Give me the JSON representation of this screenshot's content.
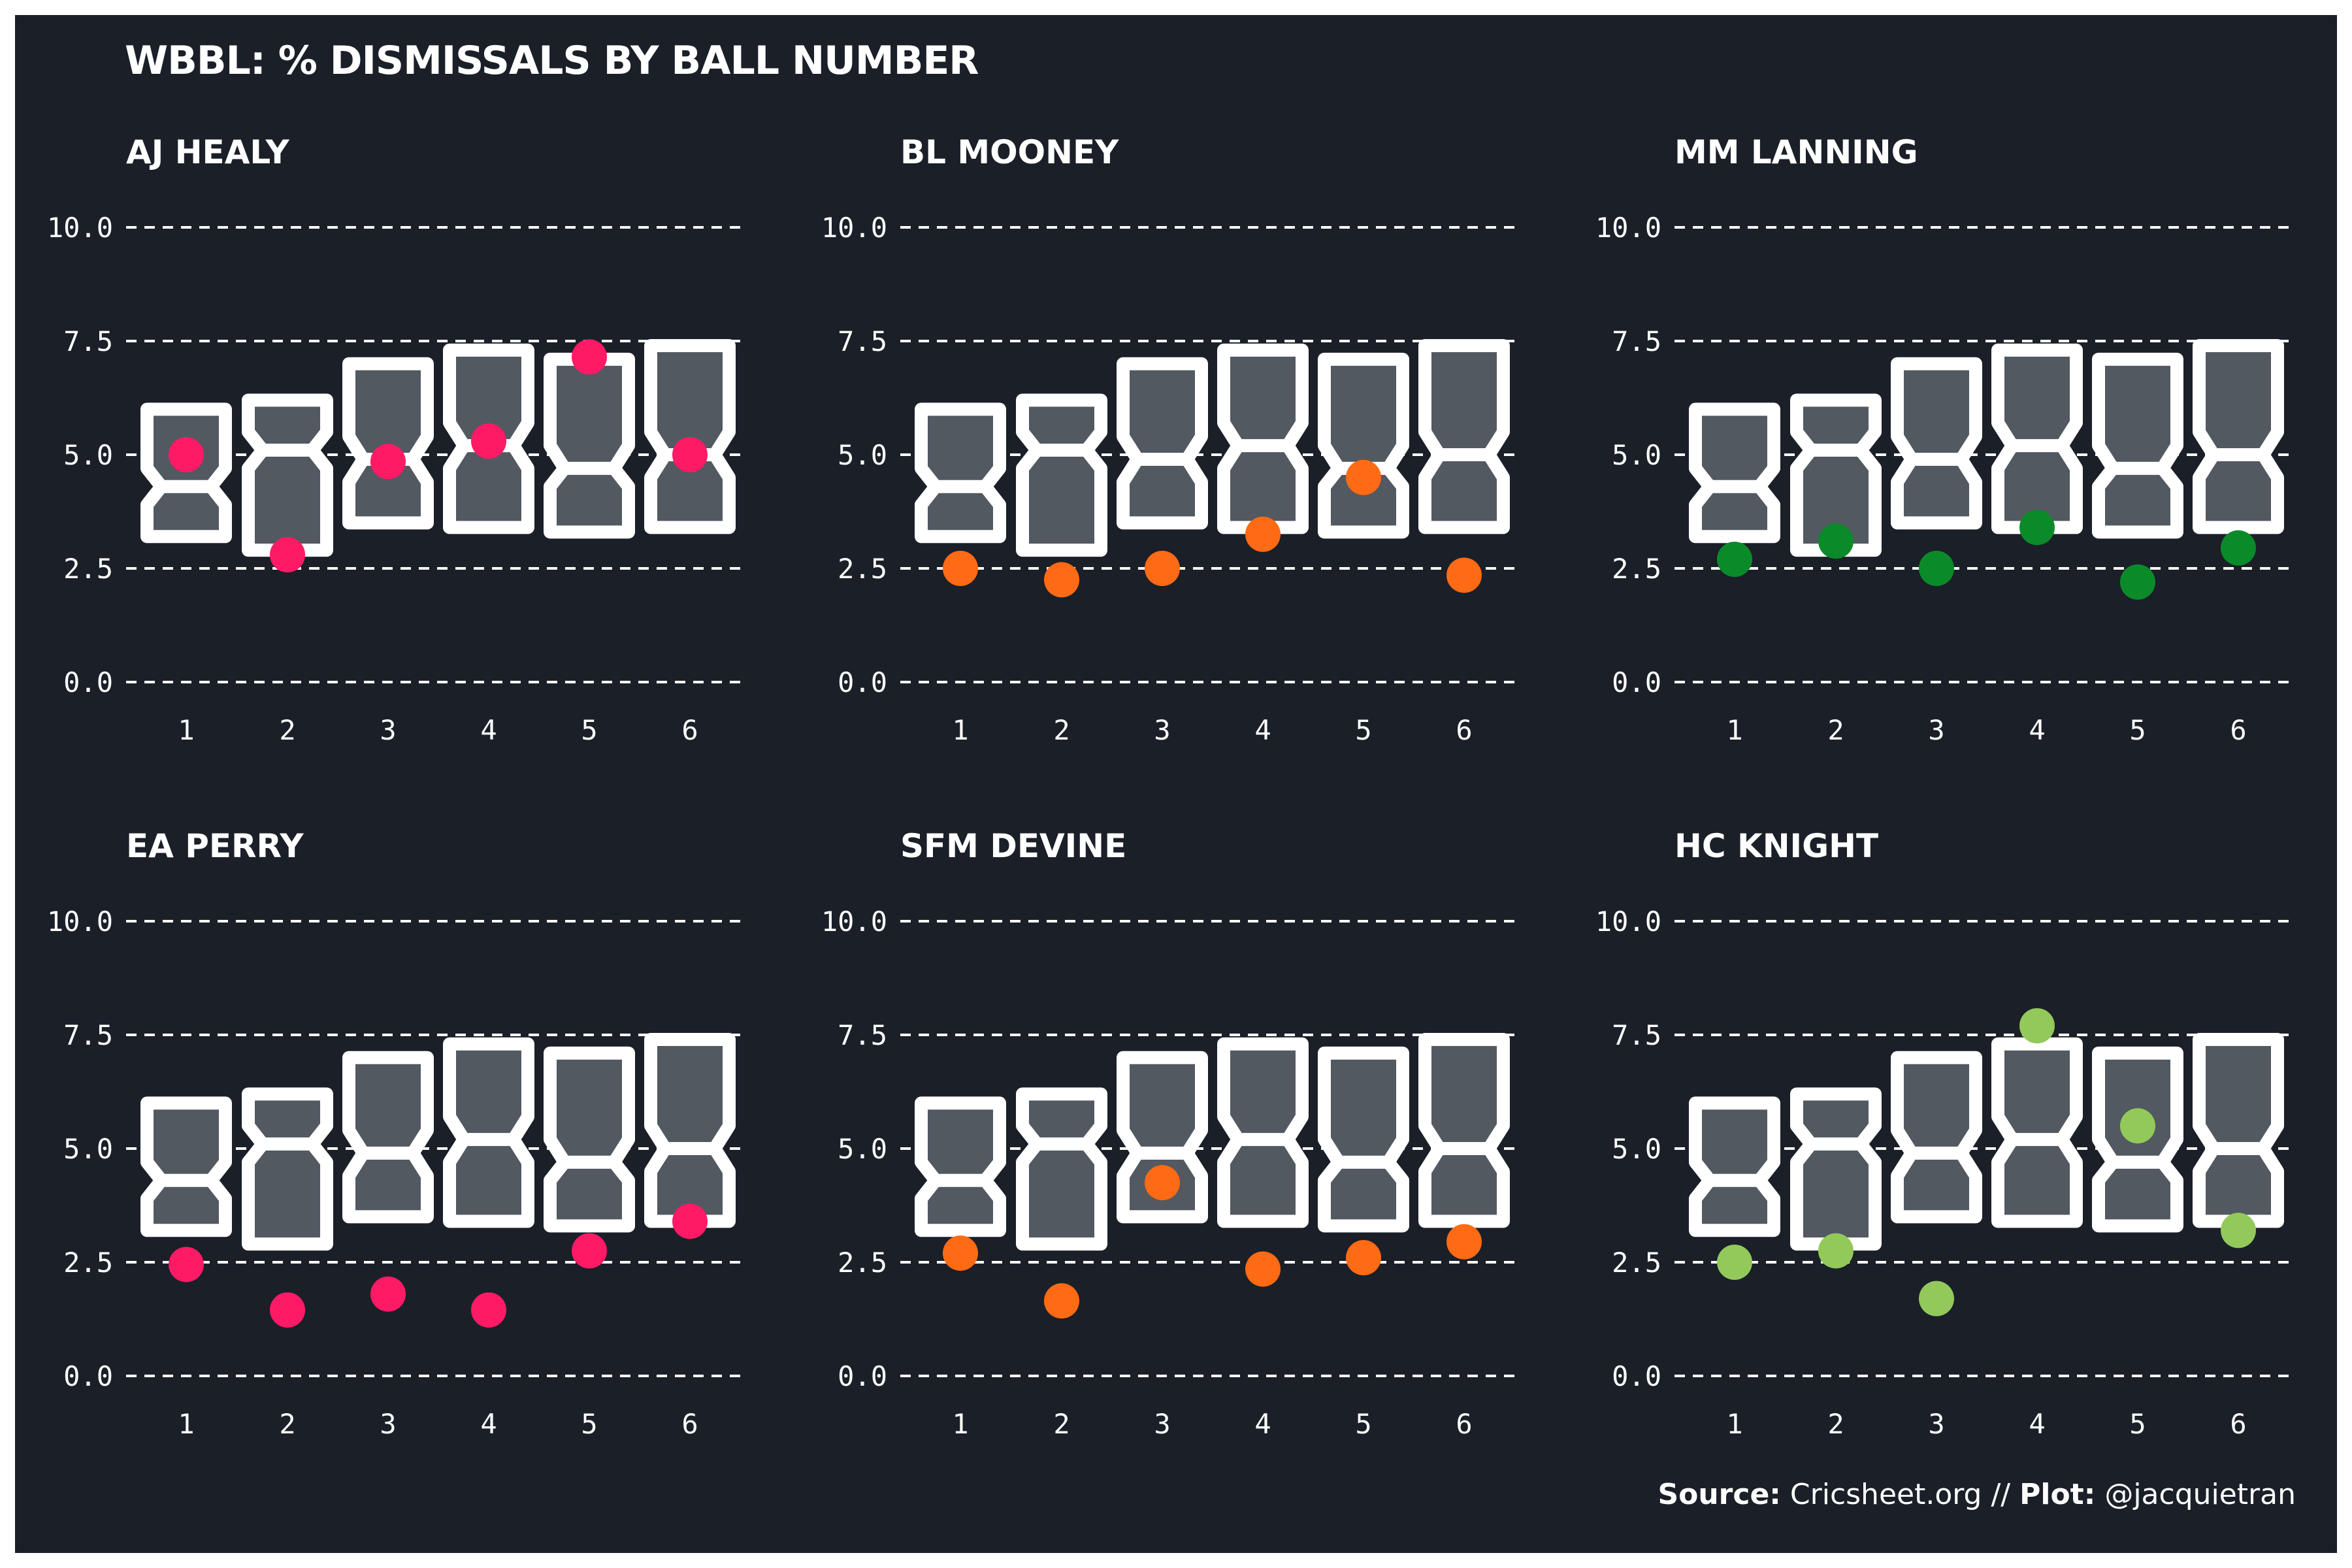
{
  "title": "WBBL: % DISMISSALS BY BALL NUMBER",
  "caption": {
    "source_label": "Source:",
    "source_value": "Cricsheet.org //",
    "plot_label": "Plot:",
    "plot_value": "@jacquietran"
  },
  "colors": {
    "background": "#1a1f28",
    "box_fill": "#525961",
    "box_stroke": "#ffffff",
    "grid": "#ffffff",
    "text": "#ffffff"
  },
  "chart_data": {
    "type": "scatter",
    "overlay": "notched-boxplot",
    "ylim": [
      0,
      10
    ],
    "y_ticks": [
      "0.0",
      "2.5",
      "5.0",
      "7.5",
      "10.0"
    ],
    "y_tick_values": [
      0,
      2.5,
      5,
      7.5,
      10
    ],
    "x_categories": [
      "1",
      "2",
      "3",
      "4",
      "5",
      "6"
    ],
    "grid": "horizontal dashed",
    "boxes": [
      {
        "ball": 1,
        "q1": 3.2,
        "median": 4.3,
        "q3": 6.0,
        "notch_lo": 3.9,
        "notch_hi": 4.7
      },
      {
        "ball": 2,
        "q1": 2.9,
        "median": 5.1,
        "q3": 6.2,
        "notch_lo": 4.7,
        "notch_hi": 5.5
      },
      {
        "ball": 3,
        "q1": 3.5,
        "median": 4.9,
        "q3": 7.0,
        "notch_lo": 4.4,
        "notch_hi": 5.4
      },
      {
        "ball": 4,
        "q1": 3.4,
        "median": 5.2,
        "q3": 7.3,
        "notch_lo": 4.7,
        "notch_hi": 5.7
      },
      {
        "ball": 5,
        "q1": 3.3,
        "median": 4.7,
        "q3": 7.1,
        "notch_lo": 4.3,
        "notch_hi": 5.2
      },
      {
        "ball": 6,
        "q1": 3.4,
        "median": 5.0,
        "q3": 7.4,
        "notch_lo": 4.5,
        "notch_hi": 5.5
      }
    ],
    "series": [
      {
        "name": "AJ HEALY",
        "color": "#ff1a66",
        "values": [
          5.0,
          2.8,
          4.85,
          5.3,
          7.15,
          5.0
        ]
      },
      {
        "name": "BL MOONEY",
        "color": "#ff6a14",
        "values": [
          2.5,
          2.25,
          2.5,
          3.25,
          4.5,
          2.35
        ]
      },
      {
        "name": "MM LANNING",
        "color": "#0b8a2a",
        "values": [
          2.7,
          3.1,
          2.5,
          3.4,
          2.2,
          2.95
        ]
      },
      {
        "name": "EA PERRY",
        "color": "#ff1a66",
        "values": [
          2.45,
          1.45,
          1.8,
          1.45,
          2.75,
          3.4
        ]
      },
      {
        "name": "SFM DEVINE",
        "color": "#ff6a14",
        "values": [
          2.7,
          1.65,
          4.25,
          2.35,
          2.6,
          2.95
        ]
      },
      {
        "name": "HC KNIGHT",
        "color": "#92c95a",
        "values": [
          2.5,
          2.75,
          1.7,
          7.7,
          5.5,
          3.2
        ]
      }
    ]
  }
}
